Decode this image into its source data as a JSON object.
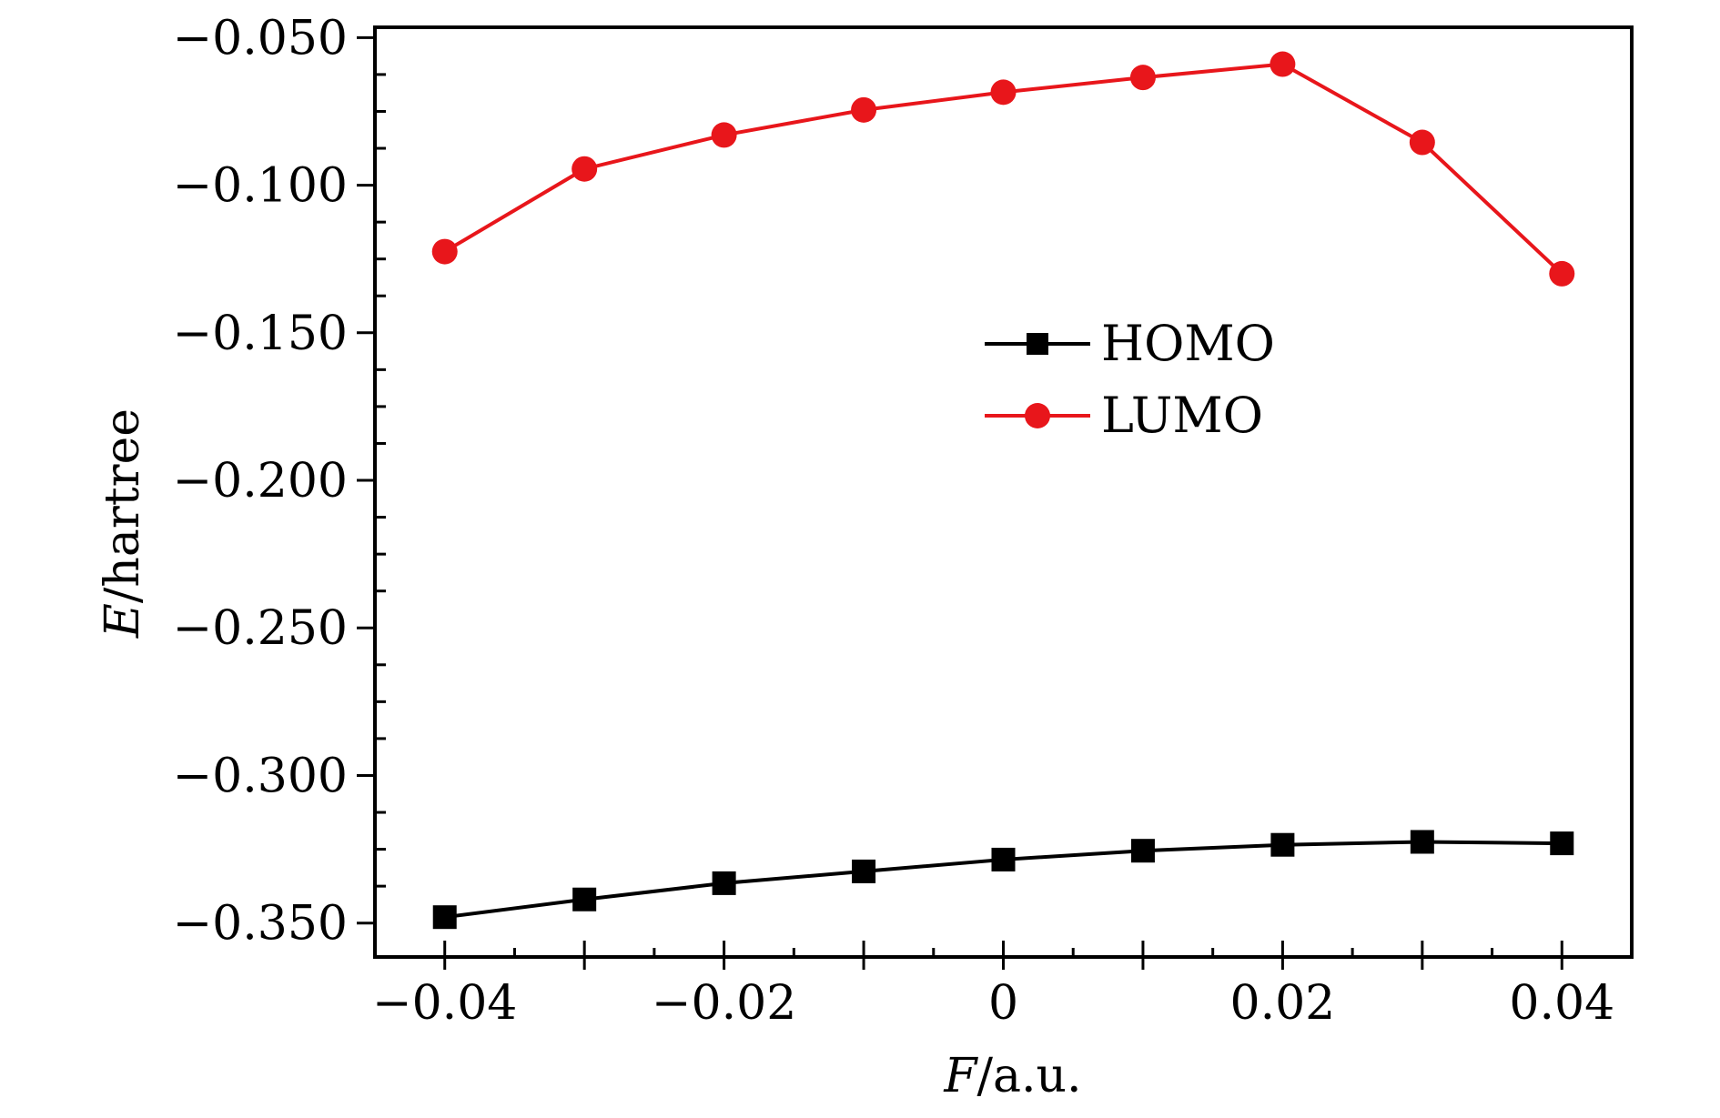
{
  "chart_data": {
    "type": "line",
    "title": "",
    "xlabel_var": "F",
    "xlabel_unit": "/a.u.",
    "ylabel_var": "E",
    "ylabel_unit": "/hartree",
    "xlim": [
      -0.045,
      0.045
    ],
    "ylim": [
      -0.3615,
      -0.0465
    ],
    "x": [
      -0.04,
      -0.03,
      -0.02,
      -0.01,
      0,
      0.01,
      0.02,
      0.03,
      0.04
    ],
    "xticks": [
      -0.04,
      -0.02,
      0,
      0.02,
      0.04
    ],
    "xtick_labels": [
      "−0.04",
      "−0.02",
      "0",
      "0.02",
      "0.04"
    ],
    "yticks": [
      -0.05,
      -0.1,
      -0.15,
      -0.2,
      -0.25,
      -0.3,
      -0.35
    ],
    "ytick_labels": [
      "−0.050",
      "−0.100",
      "−0.150",
      "−0.200",
      "−0.250",
      "−0.300",
      "−0.350"
    ],
    "grid": false,
    "legend_position": "center-right",
    "series": [
      {
        "name": "HOMO",
        "marker": "square",
        "color": "#000000",
        "values": [
          -0.348,
          -0.342,
          -0.3365,
          -0.3325,
          -0.3285,
          -0.3255,
          -0.3235,
          -0.3225,
          -0.323
        ]
      },
      {
        "name": "LUMO",
        "marker": "circle",
        "color": "#e8161b",
        "values": [
          -0.1225,
          -0.0945,
          -0.083,
          -0.0745,
          -0.0685,
          -0.0635,
          -0.059,
          -0.0855,
          -0.13
        ]
      }
    ]
  }
}
